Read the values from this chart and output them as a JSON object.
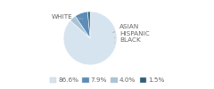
{
  "labels": [
    "WHITE",
    "ASIAN",
    "HISPANIC",
    "BLACK"
  ],
  "values": [
    86.6,
    4.0,
    7.9,
    1.5
  ],
  "colors": [
    "#d6e4ef",
    "#a8c4d8",
    "#5b8db8",
    "#2c5f7a"
  ],
  "legend_colors": [
    "#d6e4ef",
    "#5b8db8",
    "#a8c4d8",
    "#2c5f7a"
  ],
  "legend_labels": [
    "86.6%",
    "7.9%",
    "4.0%",
    "1.5%"
  ],
  "label_fontsize": 5.2,
  "legend_fontsize": 5.2,
  "background_color": "#ffffff",
  "text_color": "#666666"
}
